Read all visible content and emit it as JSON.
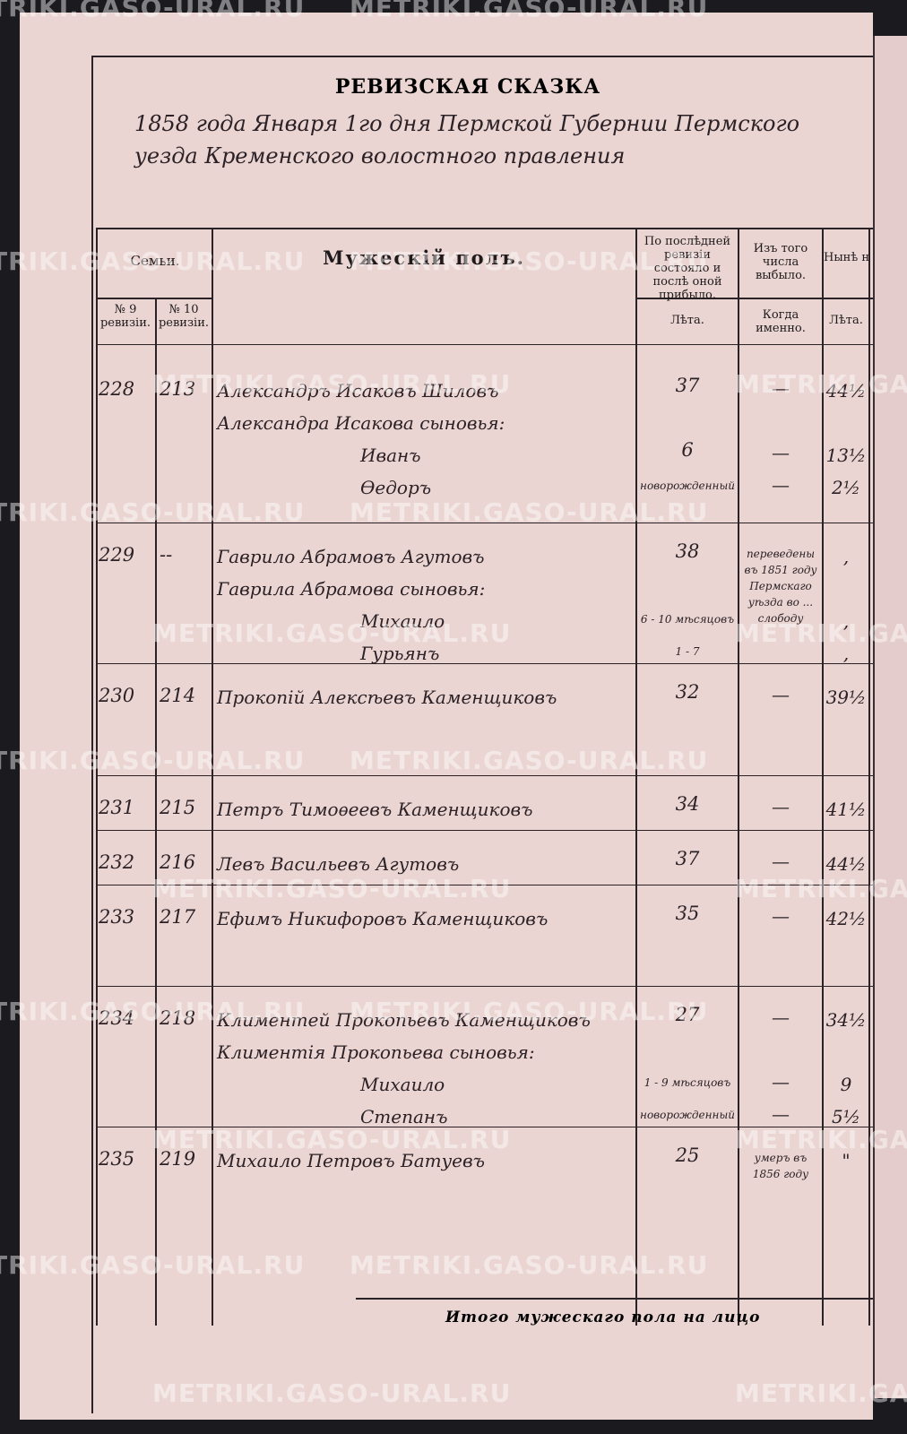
{
  "header": {
    "title": "РЕВИЗСКАЯ СКАЗКА",
    "handwritten": "1858 года Января 1го дня Пермской Губернии Пермского уезда Кременского волостного правления"
  },
  "columns": {
    "families": "Семьи.",
    "male": "Мужескій полъ.",
    "last_revision": "По послѣдней ревизіи состояло и послѣ оной прибыло.",
    "departed": "Изъ того числа выбыло.",
    "present": "Нынѣ на лицо.",
    "no9": "№ 9 ревизіи.",
    "no10": "№ 10 ревизіи.",
    "years": "Лѣта.",
    "when": "Когда именно.",
    "years_now": "Лѣта."
  },
  "rows": [
    {
      "no9": "228",
      "no10": "213",
      "lines": [
        {
          "name": "Александръ Исаковъ Шиловъ",
          "age": "37",
          "left": "—",
          "now": "44½"
        },
        {
          "name": "Александра Исакова сыновья:"
        },
        {
          "name": "Иванъ",
          "age": "6",
          "left": "—",
          "now": "13½"
        },
        {
          "name": "Өедоръ",
          "age": "новорожденный",
          "left": "—",
          "now": "2½"
        }
      ]
    },
    {
      "no9": "229",
      "no10": "--",
      "lines": [
        {
          "name": "Гаврило Абрамовъ Агутовъ",
          "age": "38",
          "left": "переведены въ 1851 году Пермскаго уѣзда во ... слободу",
          "now": ","
        },
        {
          "name": "Гаврила Абрамова сыновья:"
        },
        {
          "name": "Михаило",
          "age": "6 - 10 мѣсяцовъ",
          "now": ","
        },
        {
          "name": "Гурьянъ",
          "age": "1 - 7",
          "now": ","
        }
      ]
    },
    {
      "no9": "230",
      "no10": "214",
      "lines": [
        {
          "name": "Прокопій Алексѣевъ Каменщиковъ",
          "age": "32",
          "left": "—",
          "now": "39½"
        }
      ]
    },
    {
      "no9": "231",
      "no10": "215",
      "lines": [
        {
          "name": "Петръ Тимоѳеевъ Каменщиковъ",
          "age": "34",
          "left": "—",
          "now": "41½"
        }
      ]
    },
    {
      "no9": "232",
      "no10": "216",
      "lines": [
        {
          "name": "Левъ Васильевъ Агутовъ",
          "age": "37",
          "left": "—",
          "now": "44½"
        }
      ]
    },
    {
      "no9": "233",
      "no10": "217",
      "lines": [
        {
          "name": "Ефимъ Никифоровъ Каменщиковъ",
          "age": "35",
          "left": "—",
          "now": "42½"
        }
      ]
    },
    {
      "no9": "234",
      "no10": "218",
      "lines": [
        {
          "name": "Климентей Прокопьевъ Каменщиковъ",
          "age": "27",
          "left": "—",
          "now": "34½"
        },
        {
          "name": "Климентія Прокопьева сыновья:"
        },
        {
          "name": "Михаило",
          "age": "1 - 9 мѣсяцовъ",
          "left": "—",
          "now": "9"
        },
        {
          "name": "Степанъ",
          "age": "новорожденный",
          "left": "—",
          "now": "5½"
        }
      ]
    },
    {
      "no9": "235",
      "no10": "219",
      "lines": [
        {
          "name": "Михаило Петровъ Батуевъ",
          "age": "25",
          "left": "умеръ въ 1856 году",
          "now": "\""
        }
      ]
    }
  ],
  "footer": "Итого мужескаго пола на лицо",
  "watermark": "METRIKI.GASO-URAL.RU"
}
